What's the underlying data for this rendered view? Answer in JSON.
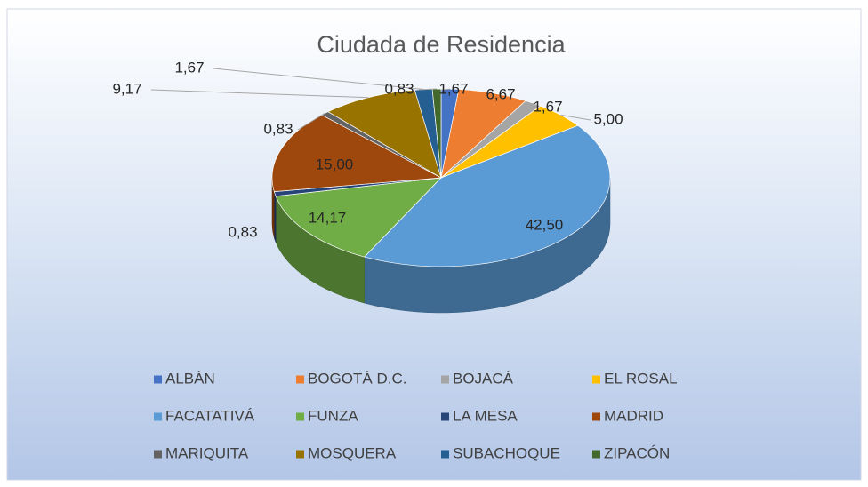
{
  "chart_data": {
    "type": "pie",
    "title": "Ciudada de Residencia",
    "categories": [
      "ALBÁN",
      "BOGOTÁ D.C.",
      "BOJACÁ",
      "EL ROSAL",
      "FACATATIVÁ",
      "FUNZA",
      "LA MESA",
      "MADRID",
      "MARIQUITA",
      "MOSQUERA",
      "SUBACHOQUE",
      "ZIPACÓN"
    ],
    "values": [
      1.67,
      6.67,
      1.67,
      5.0,
      42.5,
      14.17,
      0.83,
      15.0,
      0.83,
      9.17,
      1.67,
      0.83
    ],
    "value_labels": [
      "1,67",
      "6,67",
      "1,67",
      "5,00",
      "42,50",
      "14,17",
      "0,83",
      "15,00",
      "0,83",
      "9,17",
      "1,67",
      "0,83"
    ],
    "colors": [
      "#4472c4",
      "#ed7d31",
      "#a5a5a5",
      "#ffc000",
      "#5b9bd5",
      "#70ad47",
      "#264478",
      "#9e480e",
      "#636363",
      "#997300",
      "#255e91",
      "#43682b"
    ],
    "legend": "bottom"
  }
}
